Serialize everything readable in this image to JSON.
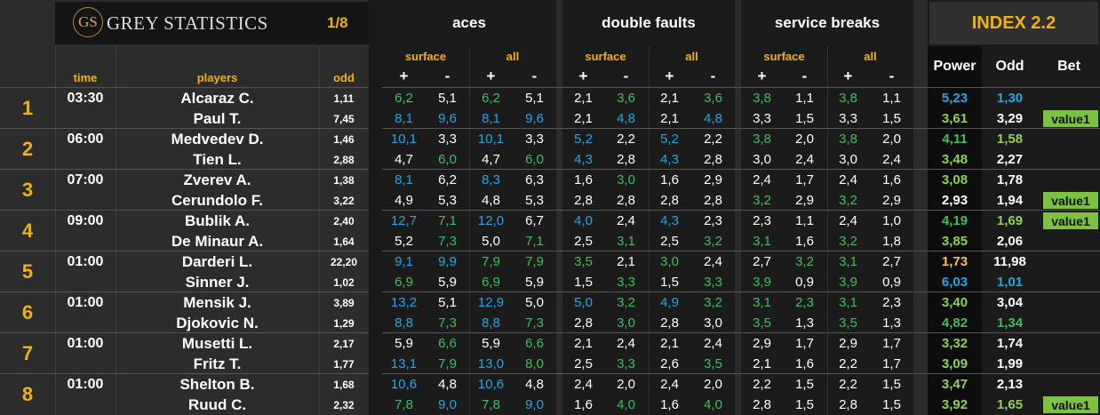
{
  "header": {
    "logo_mark": "GS",
    "logo_text": "GREY STATISTICS",
    "page": "1/8",
    "groups": [
      "aces",
      "double faults",
      "service breaks"
    ],
    "index_title": "INDEX 2.2",
    "sub_surface": "surface",
    "sub_all": "all",
    "plus": "+",
    "minus": "-",
    "col_time": "time",
    "col_players": "players",
    "col_odd": "odd",
    "col_power": "Power",
    "col_odd2": "Odd",
    "col_bet": "Bet"
  },
  "colors": {
    "white": "#ffffff",
    "blue": "#1ea7e8",
    "green": "#3fbf5a",
    "lime": "#8fd14f",
    "yellow": "#f4c542",
    "gold": "#f2b200",
    "bet_badge": "#7dc142"
  },
  "matches": [
    {
      "num": "1",
      "time": "03:30",
      "players": [
        {
          "name": "Alcaraz C.",
          "odd": "1,11",
          "stats": [
            [
              "6,2",
              "green"
            ],
            [
              "5,1",
              "white"
            ],
            [
              "6,2",
              "green"
            ],
            [
              "5,1",
              "white"
            ],
            [
              "2,1",
              "white"
            ],
            [
              "3,6",
              "green"
            ],
            [
              "2,1",
              "white"
            ],
            [
              "3,6",
              "green"
            ],
            [
              "3,8",
              "green"
            ],
            [
              "1,1",
              "white"
            ],
            [
              "3,8",
              "green"
            ],
            [
              "1,1",
              "white"
            ]
          ],
          "power": [
            "5,23",
            "blue"
          ],
          "odd2": [
            "1,30",
            "blue"
          ],
          "bet": ""
        },
        {
          "name": "Paul T.",
          "odd": "7,45",
          "stats": [
            [
              "8,1",
              "blue"
            ],
            [
              "9,6",
              "blue"
            ],
            [
              "8,1",
              "blue"
            ],
            [
              "9,6",
              "blue"
            ],
            [
              "2,1",
              "white"
            ],
            [
              "4,8",
              "blue"
            ],
            [
              "2,1",
              "white"
            ],
            [
              "4,8",
              "blue"
            ],
            [
              "3,3",
              "white"
            ],
            [
              "1,5",
              "white"
            ],
            [
              "3,3",
              "white"
            ],
            [
              "1,5",
              "white"
            ]
          ],
          "power": [
            "3,61",
            "lime"
          ],
          "odd2": [
            "3,29",
            "white"
          ],
          "bet": "value1"
        }
      ]
    },
    {
      "num": "2",
      "time": "06:00",
      "players": [
        {
          "name": "Medvedev D.",
          "odd": "1,46",
          "stats": [
            [
              "10,1",
              "blue"
            ],
            [
              "3,3",
              "white"
            ],
            [
              "10,1",
              "blue"
            ],
            [
              "3,3",
              "white"
            ],
            [
              "5,2",
              "blue"
            ],
            [
              "2,2",
              "white"
            ],
            [
              "5,2",
              "blue"
            ],
            [
              "2,2",
              "white"
            ],
            [
              "3,8",
              "green"
            ],
            [
              "2,0",
              "white"
            ],
            [
              "3,8",
              "green"
            ],
            [
              "2,0",
              "white"
            ]
          ],
          "power": [
            "4,11",
            "green"
          ],
          "odd2": [
            "1,58",
            "lime"
          ],
          "bet": ""
        },
        {
          "name": "Tien L.",
          "odd": "2,88",
          "stats": [
            [
              "4,7",
              "white"
            ],
            [
              "6,0",
              "green"
            ],
            [
              "4,7",
              "white"
            ],
            [
              "6,0",
              "green"
            ],
            [
              "4,3",
              "blue"
            ],
            [
              "2,8",
              "white"
            ],
            [
              "4,3",
              "blue"
            ],
            [
              "2,8",
              "white"
            ],
            [
              "3,0",
              "white"
            ],
            [
              "2,4",
              "white"
            ],
            [
              "3,0",
              "white"
            ],
            [
              "2,4",
              "white"
            ]
          ],
          "power": [
            "3,48",
            "lime"
          ],
          "odd2": [
            "2,27",
            "white"
          ],
          "bet": ""
        }
      ]
    },
    {
      "num": "3",
      "time": "07:00",
      "players": [
        {
          "name": "Zverev A.",
          "odd": "1,38",
          "stats": [
            [
              "8,1",
              "blue"
            ],
            [
              "6,2",
              "white"
            ],
            [
              "8,3",
              "blue"
            ],
            [
              "6,3",
              "white"
            ],
            [
              "1,6",
              "white"
            ],
            [
              "3,0",
              "green"
            ],
            [
              "1,6",
              "white"
            ],
            [
              "2,9",
              "white"
            ],
            [
              "2,4",
              "white"
            ],
            [
              "1,7",
              "white"
            ],
            [
              "2,4",
              "white"
            ],
            [
              "1,6",
              "white"
            ]
          ],
          "power": [
            "3,08",
            "lime"
          ],
          "odd2": [
            "1,78",
            "white"
          ],
          "bet": ""
        },
        {
          "name": "Cerundolo F.",
          "odd": "3,22",
          "stats": [
            [
              "4,9",
              "white"
            ],
            [
              "5,3",
              "white"
            ],
            [
              "4,8",
              "white"
            ],
            [
              "5,3",
              "white"
            ],
            [
              "2,8",
              "white"
            ],
            [
              "2,8",
              "white"
            ],
            [
              "2,8",
              "white"
            ],
            [
              "2,8",
              "white"
            ],
            [
              "3,2",
              "green"
            ],
            [
              "2,9",
              "white"
            ],
            [
              "3,2",
              "green"
            ],
            [
              "2,9",
              "white"
            ]
          ],
          "power": [
            "2,93",
            "white"
          ],
          "odd2": [
            "1,94",
            "white"
          ],
          "bet": "value1"
        }
      ]
    },
    {
      "num": "4",
      "time": "09:00",
      "players": [
        {
          "name": "Bublik A.",
          "odd": "2,40",
          "stats": [
            [
              "12,7",
              "blue"
            ],
            [
              "7,1",
              "green"
            ],
            [
              "12,0",
              "blue"
            ],
            [
              "6,7",
              "white"
            ],
            [
              "4,0",
              "blue"
            ],
            [
              "2,4",
              "white"
            ],
            [
              "4,3",
              "blue"
            ],
            [
              "2,3",
              "white"
            ],
            [
              "2,3",
              "white"
            ],
            [
              "1,1",
              "white"
            ],
            [
              "2,4",
              "white"
            ],
            [
              "1,0",
              "white"
            ]
          ],
          "power": [
            "4,19",
            "green"
          ],
          "odd2": [
            "1,69",
            "lime"
          ],
          "bet": "value1"
        },
        {
          "name": "De Minaur A.",
          "odd": "1,64",
          "stats": [
            [
              "5,2",
              "white"
            ],
            [
              "7,3",
              "green"
            ],
            [
              "5,0",
              "white"
            ],
            [
              "7,1",
              "green"
            ],
            [
              "2,5",
              "white"
            ],
            [
              "3,1",
              "green"
            ],
            [
              "2,5",
              "white"
            ],
            [
              "3,2",
              "green"
            ],
            [
              "3,1",
              "green"
            ],
            [
              "1,6",
              "white"
            ],
            [
              "3,2",
              "green"
            ],
            [
              "1,8",
              "white"
            ]
          ],
          "power": [
            "3,85",
            "lime"
          ],
          "odd2": [
            "2,06",
            "white"
          ],
          "bet": ""
        }
      ]
    },
    {
      "num": "5",
      "time": "01:00",
      "players": [
        {
          "name": "Darderi L.",
          "odd": "22,20",
          "stats": [
            [
              "9,1",
              "blue"
            ],
            [
              "9,9",
              "blue"
            ],
            [
              "7,9",
              "green"
            ],
            [
              "7,9",
              "green"
            ],
            [
              "3,5",
              "green"
            ],
            [
              "2,1",
              "white"
            ],
            [
              "3,0",
              "green"
            ],
            [
              "2,4",
              "white"
            ],
            [
              "2,7",
              "white"
            ],
            [
              "3,2",
              "green"
            ],
            [
              "3,1",
              "green"
            ],
            [
              "2,7",
              "white"
            ]
          ],
          "power": [
            "1,73",
            "yellow"
          ],
          "odd2": [
            "11,98",
            "white"
          ],
          "bet": ""
        },
        {
          "name": "Sinner J.",
          "odd": "1,02",
          "stats": [
            [
              "6,9",
              "green"
            ],
            [
              "5,9",
              "white"
            ],
            [
              "6,9",
              "green"
            ],
            [
              "5,9",
              "white"
            ],
            [
              "1,5",
              "white"
            ],
            [
              "3,3",
              "green"
            ],
            [
              "1,5",
              "white"
            ],
            [
              "3,3",
              "green"
            ],
            [
              "3,9",
              "green"
            ],
            [
              "0,9",
              "white"
            ],
            [
              "3,9",
              "green"
            ],
            [
              "0,9",
              "white"
            ]
          ],
          "power": [
            "6,03",
            "blue"
          ],
          "odd2": [
            "1,01",
            "blue"
          ],
          "bet": ""
        }
      ]
    },
    {
      "num": "6",
      "time": "01:00",
      "players": [
        {
          "name": "Mensik J.",
          "odd": "3,89",
          "stats": [
            [
              "13,2",
              "blue"
            ],
            [
              "5,1",
              "white"
            ],
            [
              "12,9",
              "blue"
            ],
            [
              "5,0",
              "white"
            ],
            [
              "5,0",
              "blue"
            ],
            [
              "3,2",
              "green"
            ],
            [
              "4,9",
              "blue"
            ],
            [
              "3,2",
              "green"
            ],
            [
              "3,1",
              "green"
            ],
            [
              "2,3",
              "green"
            ],
            [
              "3,1",
              "green"
            ],
            [
              "2,3",
              "white"
            ]
          ],
          "power": [
            "3,40",
            "lime"
          ],
          "odd2": [
            "3,04",
            "white"
          ],
          "bet": ""
        },
        {
          "name": "Djokovic N.",
          "odd": "1,29",
          "stats": [
            [
              "8,8",
              "blue"
            ],
            [
              "7,3",
              "green"
            ],
            [
              "8,8",
              "blue"
            ],
            [
              "7,3",
              "green"
            ],
            [
              "2,8",
              "white"
            ],
            [
              "3,0",
              "green"
            ],
            [
              "2,8",
              "white"
            ],
            [
              "3,0",
              "white"
            ],
            [
              "3,5",
              "green"
            ],
            [
              "1,3",
              "white"
            ],
            [
              "3,5",
              "green"
            ],
            [
              "1,3",
              "white"
            ]
          ],
          "power": [
            "4,82",
            "green"
          ],
          "odd2": [
            "1,34",
            "green"
          ],
          "bet": ""
        }
      ]
    },
    {
      "num": "7",
      "time": "01:00",
      "players": [
        {
          "name": "Musetti L.",
          "odd": "2,17",
          "stats": [
            [
              "5,9",
              "white"
            ],
            [
              "6,6",
              "green"
            ],
            [
              "5,9",
              "white"
            ],
            [
              "6,6",
              "green"
            ],
            [
              "2,1",
              "white"
            ],
            [
              "2,4",
              "white"
            ],
            [
              "2,1",
              "white"
            ],
            [
              "2,4",
              "white"
            ],
            [
              "2,9",
              "white"
            ],
            [
              "1,7",
              "white"
            ],
            [
              "2,9",
              "white"
            ],
            [
              "1,7",
              "white"
            ]
          ],
          "power": [
            "3,32",
            "lime"
          ],
          "odd2": [
            "1,74",
            "white"
          ],
          "bet": ""
        },
        {
          "name": "Fritz T.",
          "odd": "1,77",
          "stats": [
            [
              "13,1",
              "blue"
            ],
            [
              "7,9",
              "green"
            ],
            [
              "13,0",
              "blue"
            ],
            [
              "8,0",
              "green"
            ],
            [
              "2,5",
              "white"
            ],
            [
              "3,3",
              "green"
            ],
            [
              "2,6",
              "white"
            ],
            [
              "3,5",
              "green"
            ],
            [
              "2,1",
              "white"
            ],
            [
              "1,6",
              "white"
            ],
            [
              "2,2",
              "white"
            ],
            [
              "1,7",
              "white"
            ]
          ],
          "power": [
            "3,09",
            "lime"
          ],
          "odd2": [
            "1,99",
            "white"
          ],
          "bet": ""
        }
      ]
    },
    {
      "num": "8",
      "time": "01:00",
      "players": [
        {
          "name": "Shelton B.",
          "odd": "1,68",
          "stats": [
            [
              "10,6",
              "blue"
            ],
            [
              "4,8",
              "white"
            ],
            [
              "10,6",
              "blue"
            ],
            [
              "4,8",
              "white"
            ],
            [
              "2,4",
              "white"
            ],
            [
              "2,0",
              "white"
            ],
            [
              "2,4",
              "white"
            ],
            [
              "2,0",
              "white"
            ],
            [
              "2,2",
              "white"
            ],
            [
              "1,5",
              "white"
            ],
            [
              "2,2",
              "white"
            ],
            [
              "1,5",
              "white"
            ]
          ],
          "power": [
            "3,47",
            "lime"
          ],
          "odd2": [
            "2,13",
            "white"
          ],
          "bet": ""
        },
        {
          "name": "Ruud C.",
          "odd": "2,32",
          "stats": [
            [
              "7,8",
              "green"
            ],
            [
              "9,0",
              "blue"
            ],
            [
              "7,8",
              "green"
            ],
            [
              "9,0",
              "blue"
            ],
            [
              "1,6",
              "white"
            ],
            [
              "4,0",
              "green"
            ],
            [
              "1,6",
              "white"
            ],
            [
              "4,0",
              "green"
            ],
            [
              "2,8",
              "white"
            ],
            [
              "1,5",
              "white"
            ],
            [
              "2,8",
              "white"
            ],
            [
              "1,5",
              "white"
            ]
          ],
          "power": [
            "3,92",
            "lime"
          ],
          "odd2": [
            "1,65",
            "lime"
          ],
          "bet": "value1"
        }
      ]
    }
  ]
}
